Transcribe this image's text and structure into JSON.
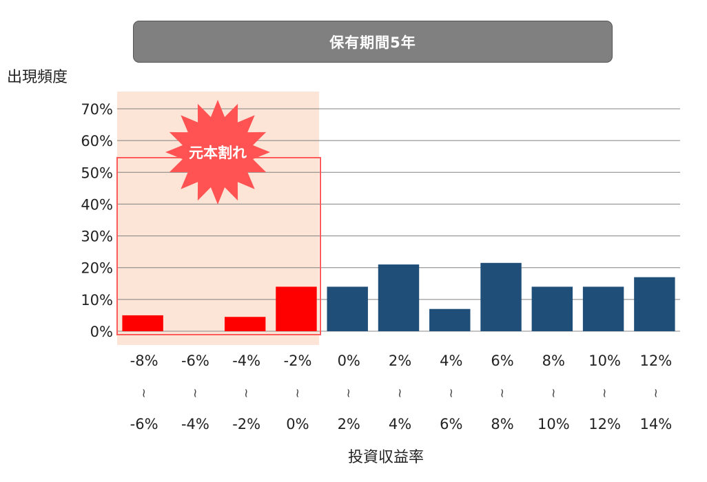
{
  "chart_data": {
    "type": "bar",
    "title": "保有期間5年",
    "ylabel": "出現頻度",
    "xlabel": "投資収益率",
    "yticks": [
      "0%",
      "10%",
      "20%",
      "30%",
      "40%",
      "50%",
      "60%",
      "70%"
    ],
    "ylim": [
      0,
      70
    ],
    "grid": true,
    "categories_from": [
      "-8%",
      "-6%",
      "-4%",
      "-2%",
      "0%",
      "2%",
      "4%",
      "6%",
      "8%",
      "10%",
      "12%"
    ],
    "categories_sep": "~",
    "categories_to": [
      "-6%",
      "-4%",
      "-2%",
      "0%",
      "2%",
      "4%",
      "6%",
      "8%",
      "10%",
      "12%",
      "14%"
    ],
    "values": [
      5,
      0,
      4.5,
      14,
      14,
      21,
      7,
      21.5,
      14,
      14,
      17
    ],
    "annotation": "元本割れ",
    "colors": {
      "loss": "#ff0000",
      "gain": "#1f4e79",
      "highlight": "#fce4d6",
      "burst": "#ff5252",
      "grid": "#808080"
    }
  }
}
